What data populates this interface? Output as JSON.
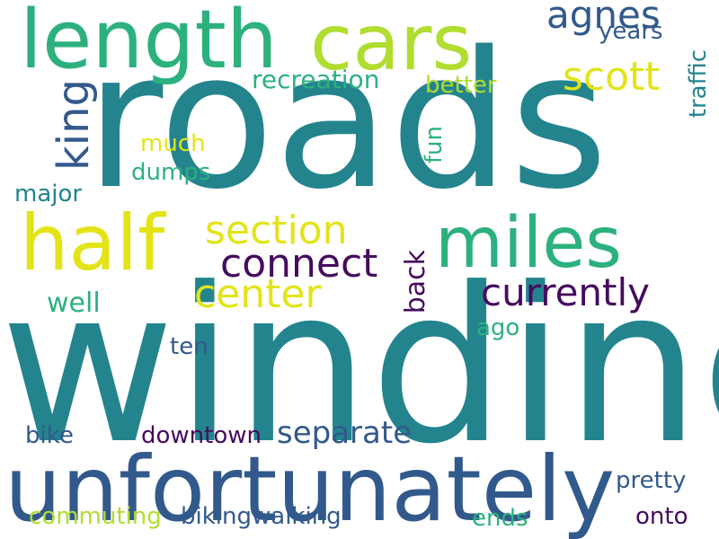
{
  "palette": {
    "teal": "#23848e",
    "blue": "#32598c",
    "green": "#2cb17e",
    "lime": "#b0dd2f",
    "yellow": "#e2e418",
    "purple": "#460b5e"
  },
  "words": {
    "roads": "roads",
    "winding": "winding",
    "unfortunately": "unfortunately",
    "length": "length",
    "cars": "cars",
    "agnes": "agnes",
    "years": "years",
    "scott": "scott",
    "traffic": "traffic",
    "recreation": "recreation",
    "better": "better",
    "king": "king",
    "much": "much",
    "fun": "fun",
    "dumps": "dumps",
    "major": "major",
    "half": "half",
    "section": "section",
    "miles": "miles",
    "connect": "connect",
    "center": "center",
    "back": "back",
    "currently": "currently",
    "well": "well",
    "ago": "ago",
    "ten": "ten",
    "separate": "separate",
    "bike": "bike",
    "downtown": "downtown",
    "pretty": "pretty",
    "commuting": "commuting",
    "bikingwalking": "bikingwalking",
    "ends": "ends",
    "onto": "onto"
  }
}
